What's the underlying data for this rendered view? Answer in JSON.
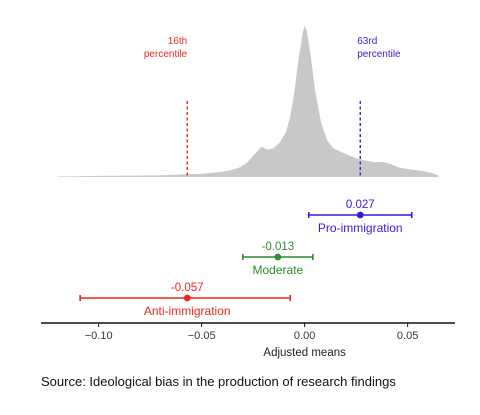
{
  "caption": "Source: Ideological bias in the production of research findings",
  "chart_data": {
    "type": "density-with-intervals",
    "xlabel": "Adjusted means",
    "xlim": [
      -0.128,
      0.073
    ],
    "xticks": [
      -0.1,
      -0.05,
      0.0,
      0.05
    ],
    "xtick_labels": [
      "−0.10",
      "−0.05",
      "0.00",
      "0.05"
    ],
    "density": {
      "color": "#c8c8c8",
      "points": [
        [
          -0.12,
          0.003
        ],
        [
          -0.11,
          0.005
        ],
        [
          -0.1,
          0.007
        ],
        [
          -0.09,
          0.008
        ],
        [
          -0.08,
          0.01
        ],
        [
          -0.07,
          0.012
        ],
        [
          -0.062,
          0.015
        ],
        [
          -0.057,
          0.018
        ],
        [
          -0.05,
          0.022
        ],
        [
          -0.045,
          0.028
        ],
        [
          -0.04,
          0.035
        ],
        [
          -0.036,
          0.045
        ],
        [
          -0.032,
          0.06
        ],
        [
          -0.028,
          0.095
        ],
        [
          -0.024,
          0.155
        ],
        [
          -0.021,
          0.2
        ],
        [
          -0.018,
          0.18
        ],
        [
          -0.015,
          0.19
        ],
        [
          -0.012,
          0.23
        ],
        [
          -0.009,
          0.3
        ],
        [
          -0.007,
          0.4
        ],
        [
          -0.005,
          0.56
        ],
        [
          -0.003,
          0.78
        ],
        [
          -0.001,
          0.95
        ],
        [
          0.0,
          1.0
        ],
        [
          0.001,
          0.97
        ],
        [
          0.003,
          0.8
        ],
        [
          0.005,
          0.58
        ],
        [
          0.008,
          0.36
        ],
        [
          0.011,
          0.24
        ],
        [
          0.014,
          0.19
        ],
        [
          0.018,
          0.165
        ],
        [
          0.022,
          0.14
        ],
        [
          0.026,
          0.12
        ],
        [
          0.03,
          0.108
        ],
        [
          0.034,
          0.098
        ],
        [
          0.038,
          0.1
        ],
        [
          0.042,
          0.085
        ],
        [
          0.046,
          0.062
        ],
        [
          0.05,
          0.052
        ],
        [
          0.054,
          0.046
        ],
        [
          0.058,
          0.038
        ],
        [
          0.062,
          0.025
        ],
        [
          0.065,
          0.01
        ]
      ]
    },
    "percentile_lines": [
      {
        "label_line1": "16th",
        "label_line2": "percentile",
        "x": -0.057,
        "color": "#e8261f"
      },
      {
        "label_line1": "63rd",
        "label_line2": "percentile",
        "x": 0.027,
        "color": "#3a18d8"
      }
    ],
    "estimates": [
      {
        "name": "Pro-immigration",
        "value": 0.027,
        "value_label": "0.027",
        "low": 0.002,
        "high": 0.052,
        "color": "#3a18d8"
      },
      {
        "name": "Moderate",
        "value": -0.013,
        "value_label": "-0.013",
        "low": -0.03,
        "high": 0.004,
        "color": "#2e8b2e"
      },
      {
        "name": "Anti-immigration",
        "value": -0.057,
        "value_label": "-0.057",
        "low": -0.109,
        "high": -0.007,
        "color": "#e8261f"
      }
    ]
  }
}
